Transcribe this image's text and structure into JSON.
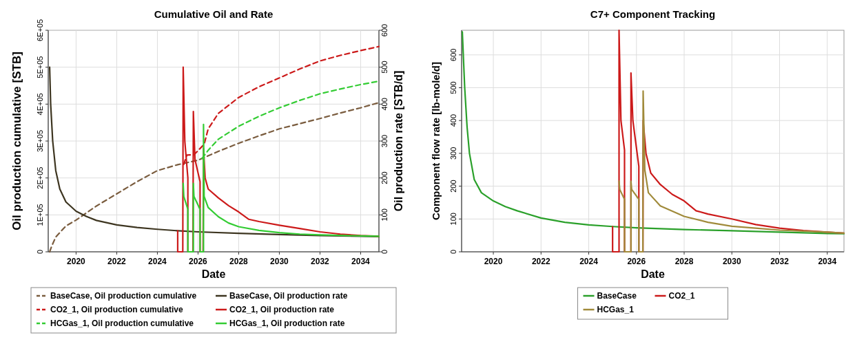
{
  "chart_data": [
    {
      "type": "line",
      "title": "Cumulative Oil and Rate",
      "xlabel": "Date",
      "ylabel": "Oil production cumulative [STB]",
      "y2label": "Oil production rate [STB/d]",
      "xlim": [
        2018.63,
        2034.9
      ],
      "xticks": [
        2020,
        2022,
        2024,
        2026,
        2028,
        2030,
        2032,
        2034
      ],
      "ylim": [
        0,
        600000
      ],
      "yticks": [
        0,
        {
          "value": 100000,
          "label": "1E+05"
        },
        {
          "value": 200000,
          "label": "2E+05"
        },
        {
          "value": 300000,
          "label": "3E+05"
        },
        {
          "value": 400000,
          "label": "4E+05"
        },
        {
          "value": 500000,
          "label": "5E+05"
        },
        {
          "value": 600000,
          "label": "6E+05"
        }
      ],
      "y2lim": [
        0,
        600
      ],
      "y2ticks": [
        0,
        100,
        200,
        300,
        400,
        500,
        600
      ],
      "grid": true,
      "legend": "bottom",
      "series": [
        {
          "name": "BaseCase, Oil production cumulative",
          "color": "#7a5c3e",
          "line_style": "dashed",
          "axis": "y",
          "x": [
            2018.7,
            2018.8,
            2019,
            2019.5,
            2020,
            2021,
            2022,
            2023,
            2024,
            2025,
            2026,
            2027,
            2028,
            2029,
            2030,
            2031,
            2032,
            2033,
            2034,
            2034.9
          ],
          "values": [
            0,
            15000,
            40000,
            70000,
            86000,
            124000,
            157000,
            190000,
            220000,
            236000,
            248000,
            272000,
            294000,
            314000,
            333000,
            347000,
            361000,
            376000,
            390000,
            404000
          ]
        },
        {
          "name": "BaseCase, Oil production rate",
          "color": "#3d3520",
          "line_style": "solid",
          "axis": "y2",
          "x": [
            2018.7,
            2018.75,
            2018.85,
            2019,
            2019.2,
            2019.5,
            2020,
            2020.5,
            2021,
            2022,
            2023,
            2024,
            2025,
            2026,
            2028,
            2030,
            2032,
            2034,
            2034.9
          ],
          "values": [
            500,
            400,
            300,
            220,
            170,
            135,
            110,
            96,
            85,
            73,
            66,
            61,
            57,
            54,
            50,
            47,
            44,
            42,
            41
          ]
        },
        {
          "name": "CO2_1, Oil production cumulative",
          "color": "#cc1a1a",
          "line_style": "dashed",
          "axis": "y",
          "x": [
            2025.3,
            2025.45,
            2025.8,
            2026.3,
            2026.5,
            2027,
            2028,
            2029,
            2030,
            2031,
            2032,
            2033,
            2034,
            2034.9
          ],
          "values": [
            237000,
            262000,
            263000,
            291000,
            333000,
            375000,
            418000,
            447000,
            471000,
            495000,
            517000,
            532000,
            545000,
            556000
          ]
        },
        {
          "name": "CO2_1, Oil production rate",
          "color": "#cc1a1a",
          "line_style": "solid",
          "axis": "y2",
          "x": [
            2025,
            2025,
            2025.25,
            2025.27,
            2025.35,
            2025.5,
            2025.5,
            2025.75,
            2025.77,
            2025.85,
            2026.1,
            2026.1,
            2026.25,
            2026.27,
            2026.35,
            2026.5,
            2027,
            2027.5,
            2028,
            2028.5,
            2029,
            2030,
            2031,
            2032,
            2033,
            2034,
            2034.9
          ],
          "values": [
            57,
            0,
            0,
            500,
            300,
            200,
            0,
            0,
            380,
            250,
            190,
            0,
            0,
            280,
            200,
            170,
            146,
            125,
            108,
            88,
            82,
            72,
            63,
            54,
            48,
            44,
            42
          ]
        },
        {
          "name": "HCGas_1, Oil production cumulative",
          "color": "#33cc33",
          "line_style": "dashed",
          "axis": "y",
          "x": [
            2026.2,
            2026.5,
            2027,
            2028,
            2029,
            2030,
            2031,
            2032,
            2033,
            2034,
            2034.9
          ],
          "values": [
            253000,
            275000,
            305000,
            340000,
            367000,
            390000,
            410000,
            428000,
            441000,
            453000,
            462000
          ]
        },
        {
          "name": "HCGas_1, Oil production rate",
          "color": "#33cc33",
          "line_style": "solid",
          "axis": "y2",
          "x": [
            2025.27,
            2025.3,
            2025.5,
            2025.5,
            2025.77,
            2025.77,
            2025.8,
            2026.1,
            2026.1,
            2026.27,
            2026.27,
            2026.3,
            2026.5,
            2027,
            2027.5,
            2028,
            2029,
            2030,
            2031,
            2032,
            2034,
            2034.9
          ],
          "values": [
            185,
            150,
            115,
            0,
            0,
            185,
            150,
            115,
            0,
            0,
            345,
            150,
            120,
            95,
            78,
            68,
            58,
            52,
            48,
            46,
            43,
            42
          ]
        }
      ]
    },
    {
      "type": "line",
      "title": "C7+ Component Tracking",
      "xlabel": "Date",
      "ylabel": "Component flow rate [lb-mole/d]",
      "xlim": [
        2018.67,
        2034.7
      ],
      "xticks": [
        2020,
        2022,
        2024,
        2026,
        2028,
        2030,
        2032,
        2034
      ],
      "ylim": [
        0,
        675
      ],
      "yticks": [
        0,
        100,
        200,
        300,
        400,
        500,
        600
      ],
      "grid": true,
      "legend": "bottom",
      "series": [
        {
          "name": "BaseCase",
          "color": "#2aa02a",
          "line_style": "solid",
          "x": [
            2018.7,
            2018.8,
            2018.9,
            2019,
            2019.2,
            2019.5,
            2020,
            2020.5,
            2021,
            2022,
            2023,
            2024,
            2025,
            2026,
            2028,
            2030,
            2032,
            2034,
            2034.7
          ],
          "values": [
            670,
            500,
            380,
            300,
            220,
            180,
            155,
            138,
            125,
            103,
            90,
            82,
            77,
            73,
            68,
            64,
            60,
            56,
            55
          ]
        },
        {
          "name": "CO2_1",
          "color": "#cc1a1a",
          "line_style": "solid",
          "x": [
            2025,
            2025,
            2025.27,
            2025.27,
            2025.35,
            2025.5,
            2025.5,
            2025.77,
            2025.77,
            2025.85,
            2026.1,
            2026.1,
            2026.27,
            2026.28,
            2026.4,
            2026.6,
            2027,
            2027.5,
            2028,
            2028.5,
            2029,
            2030,
            2031,
            2032,
            2033,
            2034,
            2034.7
          ],
          "values": [
            77,
            0,
            0,
            675,
            400,
            310,
            0,
            0,
            545,
            400,
            260,
            0,
            0,
            400,
            300,
            240,
            205,
            175,
            155,
            125,
            115,
            100,
            83,
            72,
            65,
            60,
            57
          ]
        },
        {
          "name": "HCGas_1",
          "color": "#a08a3a",
          "line_style": "solid",
          "x": [
            2025.27,
            2025.3,
            2025.5,
            2025.5,
            2025.77,
            2025.77,
            2025.8,
            2026.1,
            2026.1,
            2026.27,
            2026.28,
            2026.35,
            2026.5,
            2027,
            2028,
            2029,
            2030,
            2031,
            2032,
            2034,
            2034.7
          ],
          "values": [
            215,
            190,
            160,
            0,
            0,
            215,
            190,
            160,
            0,
            0,
            490,
            250,
            180,
            140,
            108,
            90,
            78,
            72,
            66,
            60,
            57
          ]
        }
      ]
    }
  ]
}
